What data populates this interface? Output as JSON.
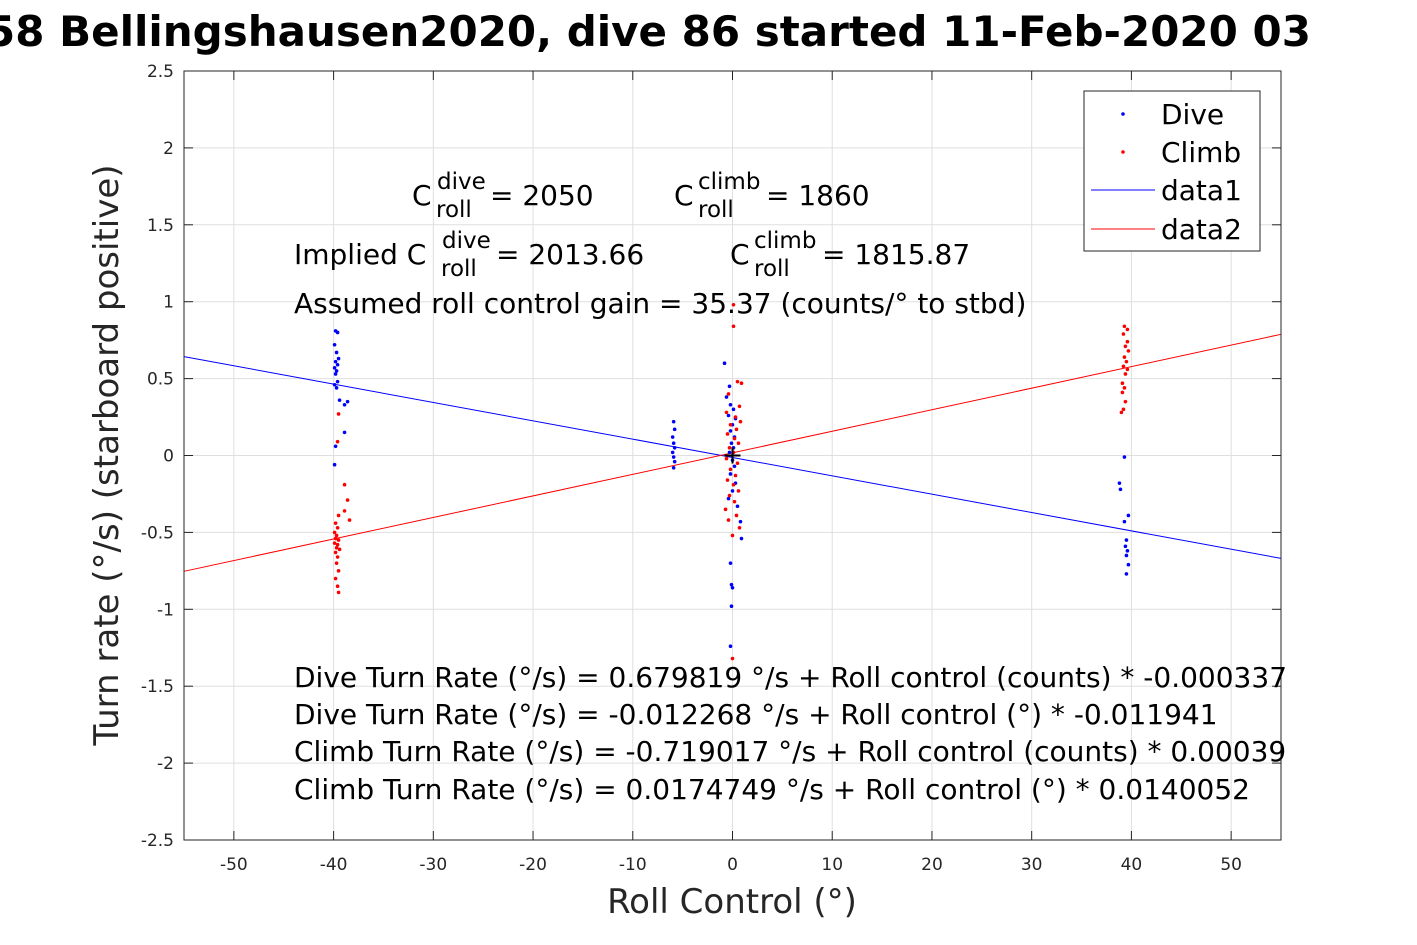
{
  "title": "58 Bellingshausen2020, dive 86 started 11-Feb-2020 03",
  "chart_data": {
    "type": "scatter",
    "title": "58 Bellingshausen2020, dive 86 started 11-Feb-2020 03",
    "xlabel": "Roll Control (°)",
    "ylabel": "Turn rate (°/s) (starboard positive)",
    "xlim": [
      -55,
      55
    ],
    "ylim": [
      -2.5,
      2.5
    ],
    "xticks": [
      -50,
      -40,
      -30,
      -20,
      -10,
      0,
      10,
      20,
      30,
      40,
      50
    ],
    "yticks": [
      2.5,
      2,
      1.5,
      1,
      0.5,
      0,
      -0.5,
      -1,
      -1.5,
      -2,
      -2.5
    ],
    "xtick_labels": [
      "-50",
      "-40",
      "-30",
      "-20",
      "-10",
      "0",
      "10",
      "20",
      "30",
      "40",
      "50"
    ],
    "ytick_labels": [
      "2.5",
      "2",
      "1.5",
      "1",
      "0.5",
      "0",
      "-0.5",
      "-1",
      "-1.5",
      "-2",
      "-2.5"
    ],
    "grid": true,
    "legend_position": "top-right",
    "series": [
      {
        "name": "Dive",
        "kind": "points",
        "color": "#0000ff",
        "points": [
          [
            -39.8,
            0.81
          ],
          [
            -39.6,
            0.8
          ],
          [
            -39.9,
            0.72
          ],
          [
            -39.7,
            0.67
          ],
          [
            -39.5,
            0.63
          ],
          [
            -39.8,
            0.61
          ],
          [
            -39.6,
            0.59
          ],
          [
            -39.9,
            0.57
          ],
          [
            -39.7,
            0.55
          ],
          [
            -39.8,
            0.53
          ],
          [
            -39.6,
            0.48
          ],
          [
            -39.9,
            0.46
          ],
          [
            -39.7,
            0.44
          ],
          [
            -39.4,
            0.36
          ],
          [
            -38.9,
            0.33
          ],
          [
            -38.6,
            0.35
          ],
          [
            -38.9,
            0.15
          ],
          [
            -39.8,
            0.06
          ],
          [
            -39.9,
            -0.06
          ],
          [
            -5.9,
            0.22
          ],
          [
            -5.8,
            0.17
          ],
          [
            -6.0,
            0.12
          ],
          [
            -5.9,
            0.08
          ],
          [
            -5.8,
            0.05
          ],
          [
            -6.0,
            0.02
          ],
          [
            -5.9,
            -0.01
          ],
          [
            -5.8,
            -0.04
          ],
          [
            -5.9,
            -0.08
          ],
          [
            -0.8,
            0.6
          ],
          [
            -0.3,
            0.45
          ],
          [
            -0.6,
            0.38
          ],
          [
            -0.2,
            0.33
          ],
          [
            0.1,
            0.3
          ],
          [
            -0.4,
            0.26
          ],
          [
            0.3,
            0.24
          ],
          [
            0.0,
            0.2
          ],
          [
            -0.2,
            0.16
          ],
          [
            0.2,
            0.12
          ],
          [
            -0.1,
            0.08
          ],
          [
            0.1,
            0.05
          ],
          [
            -0.3,
            0.02
          ],
          [
            0.0,
            -0.03
          ],
          [
            0.2,
            -0.07
          ],
          [
            -0.2,
            -0.12
          ],
          [
            0.3,
            -0.18
          ],
          [
            0.0,
            -0.23
          ],
          [
            -0.4,
            -0.28
          ],
          [
            0.5,
            -0.33
          ],
          [
            0.8,
            -0.43
          ],
          [
            0.9,
            -0.54
          ],
          [
            -0.2,
            -0.7
          ],
          [
            -0.1,
            -0.84
          ],
          [
            0.0,
            -0.86
          ],
          [
            -0.1,
            -0.98
          ],
          [
            -0.2,
            -1.24
          ],
          [
            39.3,
            -0.01
          ],
          [
            38.8,
            -0.18
          ],
          [
            38.9,
            -0.22
          ],
          [
            39.7,
            -0.39
          ],
          [
            39.3,
            -0.43
          ],
          [
            39.5,
            -0.55
          ],
          [
            39.4,
            -0.59
          ],
          [
            39.6,
            -0.62
          ],
          [
            39.5,
            -0.65
          ],
          [
            39.7,
            -0.71
          ],
          [
            39.5,
            -0.77
          ]
        ]
      },
      {
        "name": "Climb",
        "kind": "points",
        "color": "#ff0000",
        "points": [
          [
            -39.6,
            0.09
          ],
          [
            -39.5,
            0.27
          ],
          [
            -38.9,
            -0.19
          ],
          [
            -38.6,
            -0.29
          ],
          [
            -38.9,
            -0.36
          ],
          [
            -39.5,
            -0.39
          ],
          [
            -38.4,
            -0.42
          ],
          [
            -39.8,
            -0.44
          ],
          [
            -39.6,
            -0.47
          ],
          [
            -39.9,
            -0.5
          ],
          [
            -39.7,
            -0.52
          ],
          [
            -39.8,
            -0.54
          ],
          [
            -39.5,
            -0.55
          ],
          [
            -39.9,
            -0.57
          ],
          [
            -39.6,
            -0.58
          ],
          [
            -39.7,
            -0.6
          ],
          [
            -39.4,
            -0.61
          ],
          [
            -39.8,
            -0.63
          ],
          [
            -39.6,
            -0.66
          ],
          [
            -39.7,
            -0.7
          ],
          [
            -39.5,
            -0.75
          ],
          [
            -39.8,
            -0.8
          ],
          [
            -39.6,
            -0.85
          ],
          [
            -39.5,
            -0.89
          ],
          [
            0.1,
            0.98
          ],
          [
            0.1,
            0.84
          ],
          [
            0.5,
            0.48
          ],
          [
            0.9,
            0.47
          ],
          [
            -0.4,
            0.4
          ],
          [
            0.7,
            0.32
          ],
          [
            -0.6,
            0.28
          ],
          [
            0.3,
            0.25
          ],
          [
            0.8,
            0.22
          ],
          [
            -0.2,
            0.2
          ],
          [
            0.4,
            0.17
          ],
          [
            -0.5,
            0.14
          ],
          [
            0.2,
            0.11
          ],
          [
            0.6,
            0.08
          ],
          [
            -0.3,
            0.05
          ],
          [
            0.1,
            0.02
          ],
          [
            -0.6,
            -0.02
          ],
          [
            0.5,
            -0.05
          ],
          [
            -0.2,
            -0.09
          ],
          [
            0.3,
            -0.13
          ],
          [
            -0.5,
            -0.16
          ],
          [
            0.1,
            -0.19
          ],
          [
            0.6,
            -0.23
          ],
          [
            -0.3,
            -0.26
          ],
          [
            0.2,
            -0.3
          ],
          [
            -0.7,
            -0.35
          ],
          [
            0.4,
            -0.39
          ],
          [
            -0.4,
            -0.42
          ],
          [
            0.7,
            -0.47
          ],
          [
            0.0,
            -0.52
          ],
          [
            0.0,
            -1.32
          ],
          [
            39.3,
            0.84
          ],
          [
            39.6,
            0.82
          ],
          [
            39.2,
            0.79
          ],
          [
            39.6,
            0.74
          ],
          [
            39.4,
            0.71
          ],
          [
            39.7,
            0.68
          ],
          [
            39.3,
            0.64
          ],
          [
            39.5,
            0.61
          ],
          [
            39.2,
            0.58
          ],
          [
            39.6,
            0.56
          ],
          [
            39.4,
            0.53
          ],
          [
            39.1,
            0.47
          ],
          [
            39.3,
            0.44
          ],
          [
            39.1,
            0.41
          ],
          [
            39.4,
            0.35
          ],
          [
            39.2,
            0.3
          ],
          [
            39.0,
            0.28
          ]
        ]
      },
      {
        "name": "data1",
        "kind": "line",
        "color": "#0000ff",
        "x": [
          -55,
          55
        ],
        "y": [
          0.643,
          -0.669
        ]
      },
      {
        "name": "data2",
        "kind": "line",
        "color": "#ff0000",
        "x": [
          -55,
          55
        ],
        "y": [
          -0.753,
          0.788
        ]
      }
    ],
    "marker": {
      "x": 0,
      "y": 0,
      "symbol": "+",
      "color": "#000000"
    }
  },
  "annotations": {
    "c_dive_base": "C",
    "c_dive_sup": "dive",
    "c_dive_sub": "roll",
    "c_dive_val": " = 2050",
    "c_climb_base": "C",
    "c_climb_sup": "climb",
    "c_climb_sub": "roll",
    "c_climb_val": " = 1860",
    "implied_prefix": "Implied C",
    "implied_dive_sup": "dive",
    "implied_dive_sub": "roll",
    "implied_dive_val": " = 2013.66",
    "implied_climb_base": "C",
    "implied_climb_sup": "climb",
    "implied_climb_sub": "roll",
    "implied_climb_val": " = 1815.87",
    "gain": "Assumed roll control gain = 35.37 (counts/° to stbd)",
    "eq1": "Dive Turn Rate (°/s) = 0.679819 °/s + Roll control (counts) * -0.000337",
    "eq2": "Dive Turn Rate (°/s) = -0.012268 °/s + Roll control (°) * -0.011941",
    "eq3": "Climb Turn Rate (°/s) = -0.719017 °/s + Roll control (counts) * 0.00039",
    "eq4": "Climb Turn Rate (°/s) = 0.0174749 °/s + Roll control (°) * 0.0140052"
  }
}
